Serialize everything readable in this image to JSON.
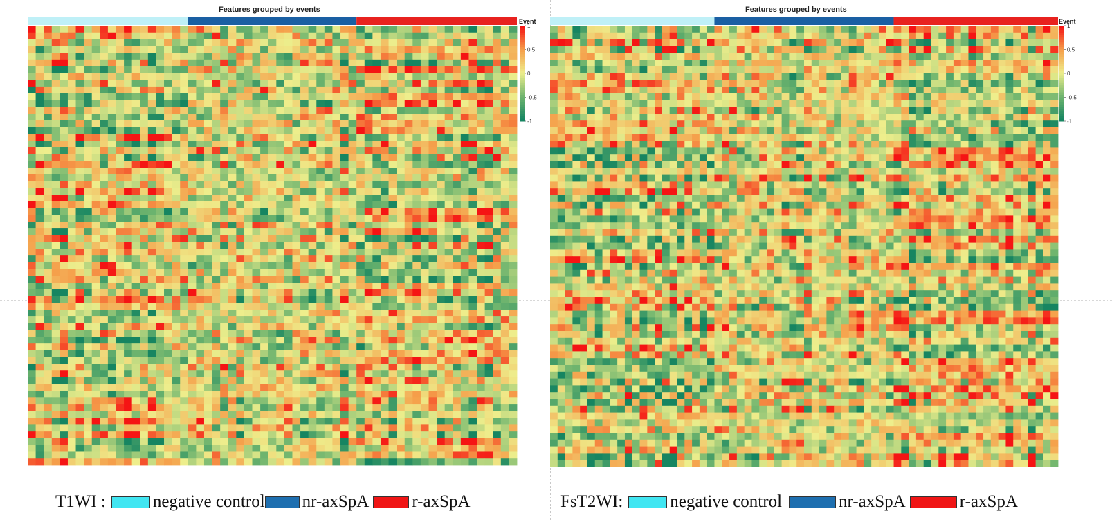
{
  "chart_data": [
    {
      "type": "heatmap",
      "id": "t1wi",
      "title": "Features grouped by events",
      "panel_label": "T1WI :",
      "color_scale": {
        "label": "Event",
        "ticks": [
          "1",
          "0.5",
          "0",
          "-0.5",
          "-1"
        ],
        "range": [
          -1,
          1
        ]
      },
      "groups": [
        {
          "name": "negative control",
          "columns": 20,
          "color": "#bff0f7",
          "legend_color": "#41e6f2"
        },
        {
          "name": "nr-axSpA",
          "columns": 21,
          "color": "#1a5fa3",
          "legend_color": "#1e6fb0"
        },
        {
          "name": "r-axSpA",
          "columns": 20,
          "color": "#e8221f",
          "legend_color": "#f01515"
        }
      ],
      "n_rows": 65,
      "cells_note": "Pairwise feature correlation values in [-1,1]; individual cell values not legible, pattern approximated."
    },
    {
      "type": "heatmap",
      "id": "fst2wi",
      "title": "Features grouped by events",
      "panel_label": "FsT2WI:",
      "color_scale": {
        "label": "Event",
        "ticks": [
          "1",
          "0.5",
          "0",
          "-0.5",
          "-1"
        ],
        "range": [
          -1,
          1
        ]
      },
      "groups": [
        {
          "name": "negative control",
          "columns": 22,
          "color": "#bff0f7",
          "legend_color": "#41e6f2"
        },
        {
          "name": "nr-axSpA",
          "columns": 24,
          "color": "#1a5fa3",
          "legend_color": "#1e6fb0"
        },
        {
          "name": "r-axSpA",
          "columns": 22,
          "color": "#e8221f",
          "legend_color": "#f01515"
        }
      ],
      "n_rows": 65,
      "cells_note": "Pairwise feature correlation values in [-1,1]; individual cell values not legible, pattern approximated."
    }
  ]
}
